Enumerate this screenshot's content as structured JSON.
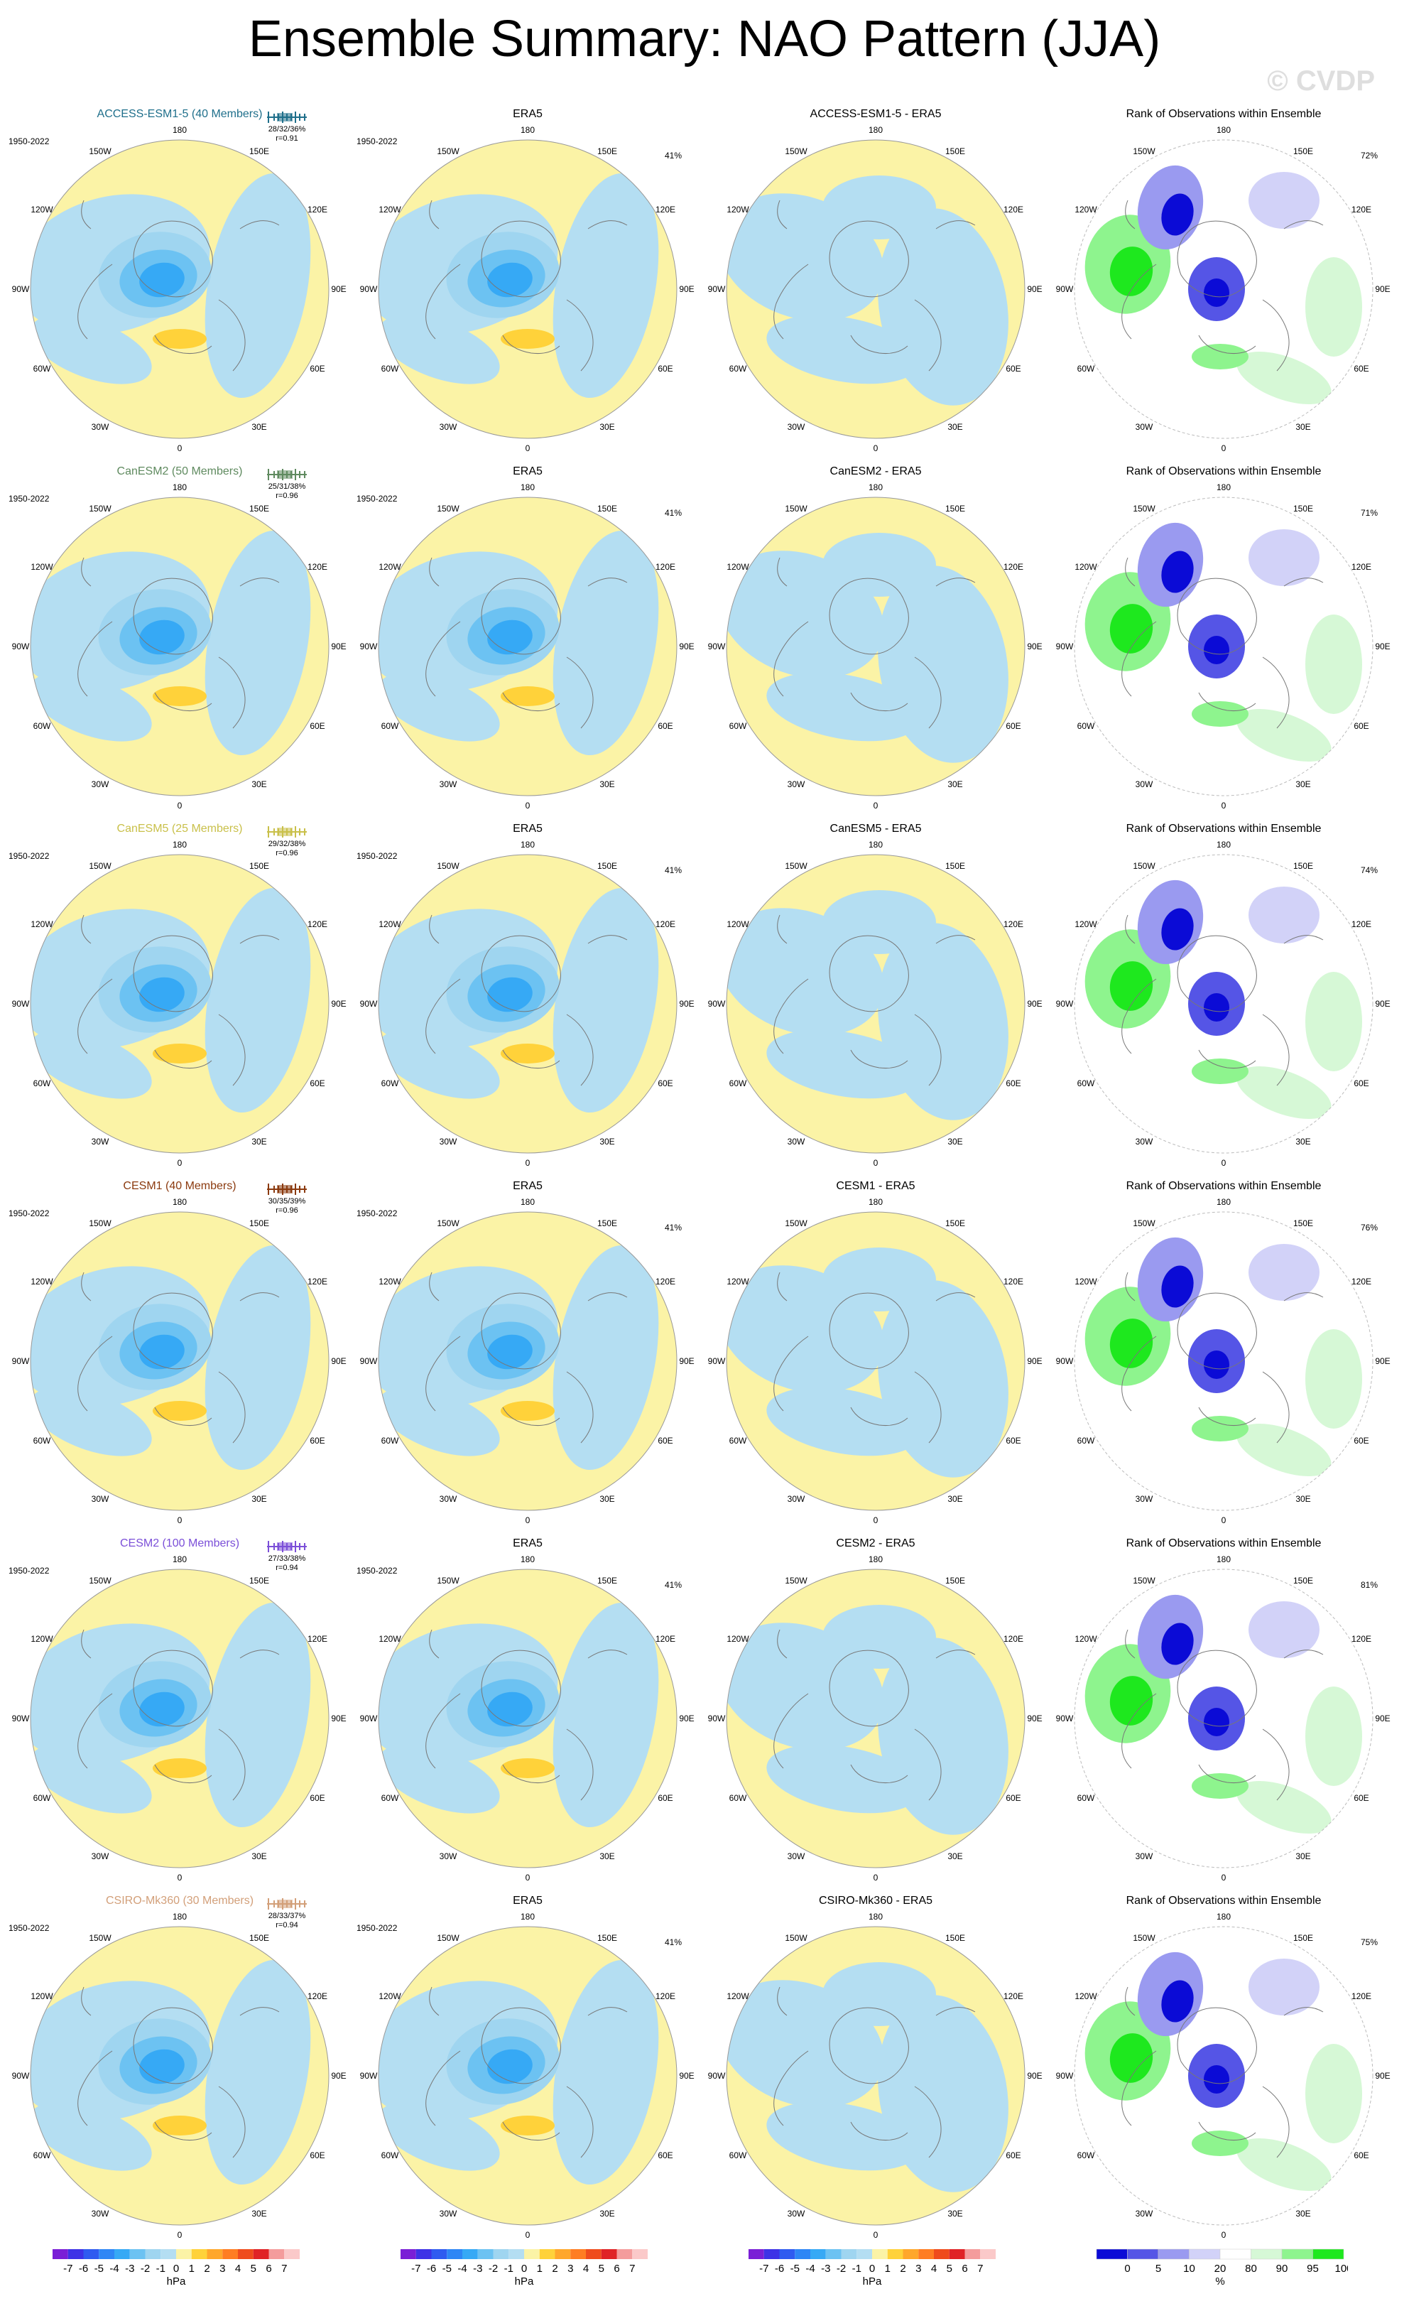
{
  "title": "Ensemble Summary: NAO Pattern (JJA)",
  "copyright": "© CVDP",
  "common": {
    "obs_label": "ERA5",
    "period": "1950-2022",
    "rank_title": "Rank of Observations within Ensemble",
    "lon_labels": [
      "180",
      "150E",
      "120E",
      "90E",
      "60E",
      "30E",
      "0",
      "30W",
      "60W",
      "90W",
      "120W",
      "150W"
    ]
  },
  "rows": [
    {
      "model": "ACCESS-ESM1-5 (40 Members)",
      "model_color": "#1f6f8b",
      "pct_text": "28/32/36%",
      "r_text": "r=0.91",
      "obs_pct": "41%",
      "diff_title": "ACCESS-ESM1-5 - ERA5",
      "rank_pct": "72%"
    },
    {
      "model": "CanESM2 (50 Members)",
      "model_color": "#5f8a5f",
      "pct_text": "25/31/38%",
      "r_text": "r=0.96",
      "obs_pct": "41%",
      "diff_title": "CanESM2 - ERA5",
      "rank_pct": "71%"
    },
    {
      "model": "CanESM5 (25 Members)",
      "model_color": "#c9c04a",
      "pct_text": "29/32/38%",
      "r_text": "r=0.96",
      "obs_pct": "41%",
      "diff_title": "CanESM5 - ERA5",
      "rank_pct": "74%"
    },
    {
      "model": "CESM1 (40 Members)",
      "model_color": "#8b3a0f",
      "pct_text": "30/35/39%",
      "r_text": "r=0.96",
      "obs_pct": "41%",
      "diff_title": "CESM1 - ERA5",
      "rank_pct": "76%"
    },
    {
      "model": "CESM2 (100 Members)",
      "model_color": "#7b4fd8",
      "pct_text": "27/33/38%",
      "r_text": "r=0.94",
      "obs_pct": "41%",
      "diff_title": "CESM2 - ERA5",
      "rank_pct": "81%"
    },
    {
      "model": "CSIRO-Mk360 (30 Members)",
      "model_color": "#d29f79",
      "pct_text": "28/33/37%",
      "r_text": "r=0.94",
      "obs_pct": "41%",
      "diff_title": "CSIRO-Mk360 - ERA5",
      "rank_pct": "75%"
    }
  ],
  "colorbars": {
    "hpa": {
      "labels": [
        "-7",
        "-6",
        "-5",
        "-4",
        "-3",
        "-2",
        "-1",
        "0",
        "1",
        "2",
        "3",
        "4",
        "5",
        "6",
        "7"
      ],
      "unit": "hPa",
      "colors": [
        "#7a1fd6",
        "#3d32e6",
        "#2f5bf0",
        "#2e86f5",
        "#36a9f5",
        "#6cc2f2",
        "#9fd5f0",
        "#b4def2",
        "#fbf3a6",
        "#ffd23a",
        "#ffa72b",
        "#ff7d22",
        "#ef4b1c",
        "#e02326",
        "#f49c9c",
        "#fbc9c9"
      ]
    },
    "rank": {
      "labels": [
        "0",
        "5",
        "10",
        "20",
        "80",
        "90",
        "95",
        "100"
      ],
      "unit": "%",
      "colors": [
        "#0b0bd6",
        "#5555e6",
        "#9a9af0",
        "#d2d2f8",
        "#ffffff",
        "#d6f8d6",
        "#8ef48e",
        "#1ee81e"
      ]
    }
  },
  "chart_data": {
    "type": "heatmap",
    "description_note": "",
    "panels_per_row": [
      "model ensemble-mean NAO pattern",
      "ERA5 NAO pattern",
      "model minus ERA5 difference",
      "rank of observations within ensemble"
    ],
    "value_scale_hPa": [
      -7,
      7
    ],
    "rank_scale_percent": [
      0,
      100
    ]
  }
}
